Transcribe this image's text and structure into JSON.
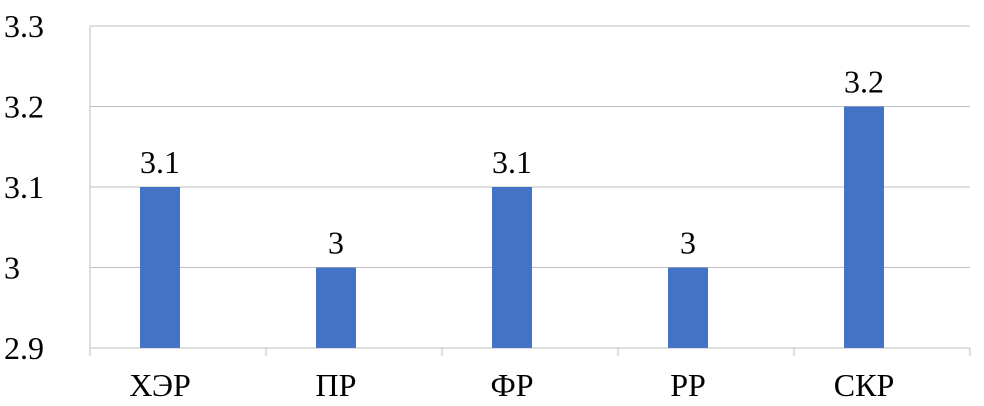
{
  "chart_data": {
    "type": "bar",
    "categories": [
      "ХЭР",
      "ПР",
      "ФР",
      "РР",
      "СКР"
    ],
    "values": [
      3.1,
      3.0,
      3.1,
      3.0,
      3.2
    ],
    "data_labels": [
      "3.1",
      "3",
      "3.1",
      "3",
      "3.2"
    ],
    "ylim": [
      2.9,
      3.3
    ],
    "y_ticks": [
      2.9,
      3.0,
      3.1,
      3.2,
      3.3
    ],
    "y_tick_labels": [
      "2.9",
      "3",
      "3.1",
      "3.2",
      "3.3"
    ],
    "grid": true,
    "bar_color": "#4472c4",
    "grid_color": "#bfbfbf"
  }
}
